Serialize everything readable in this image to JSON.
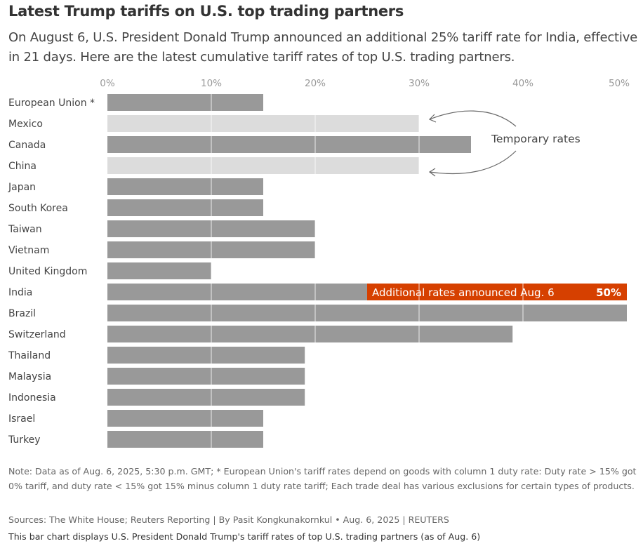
{
  "title": "Latest Trump tariffs on U.S. top trading partners",
  "subtitle": "On August 6, U.S. President Donald Trump announced an additional 25% tariff rate for India, effective in 21 days. Here are the latest cumulative tariff rates of top U.S. trading partners.",
  "chart_data": {
    "type": "bar",
    "orientation": "horizontal",
    "xlim": [
      0,
      50
    ],
    "x_ticks": [
      "0%",
      "10%",
      "20%",
      "30%",
      "40%",
      "50%"
    ],
    "x_tick_values": [
      0,
      10,
      20,
      30,
      40,
      50
    ],
    "grid": true,
    "categories": [
      "European Union *",
      "Mexico",
      "Canada",
      "China",
      "Japan",
      "South Korea",
      "Taiwan",
      "Vietnam",
      "United Kingdom",
      "India",
      "Brazil",
      "Switzerland",
      "Thailand",
      "Malaysia",
      "Indonesia",
      "Israel",
      "Turkey"
    ],
    "values": [
      15,
      30,
      35,
      30,
      15,
      15,
      20,
      20,
      10,
      50,
      50,
      39,
      19,
      19,
      19,
      15,
      15
    ],
    "temporary": [
      false,
      true,
      false,
      true,
      false,
      false,
      false,
      false,
      false,
      false,
      false,
      false,
      false,
      false,
      false,
      false,
      false
    ],
    "additional": {
      "category": "India",
      "from": 25,
      "to": 50,
      "label": "Additional rates announced Aug. 6",
      "value_label": "50%"
    },
    "annotation": "Temporary rates",
    "colors": {
      "bar": "#999999",
      "temporary": "#dcdcdc",
      "additional": "#d64000",
      "grid": "#ffffff",
      "text": "#444444"
    }
  },
  "notes": "Note: Data as of Aug. 6, 2025, 5:30 p.m. GMT; * European Union's tariff rates depend on goods with column 1 duty rate: Duty rate > 15% got 0% tariff, and duty rate < 15% got 15% minus column 1 duty rate tariff; Each trade deal has various exclusions for certain types of products.",
  "sources": "Sources: The White House; Reuters Reporting | By Pasit Kongkunakornkul • Aug. 6, 2025 | REUTERS",
  "alt_text": "This bar chart displays U.S. President Donald Trump's tariff rates of top U.S. trading partners (as of Aug. 6)"
}
